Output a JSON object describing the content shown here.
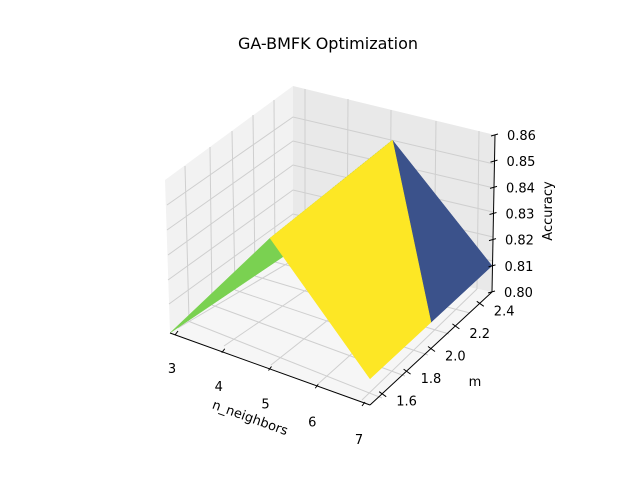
{
  "chart_data": {
    "type": "surface3d",
    "title": "GA-BMFK Optimization",
    "xlabel": "n_neighbors",
    "ylabel": "m",
    "zlabel": "Accuracy",
    "x_ticks": [
      "3",
      "4",
      "5",
      "6",
      "7"
    ],
    "y_ticks": [
      "1.6",
      "1.8",
      "2.0",
      "2.2",
      "2.4"
    ],
    "z_ticks": [
      "0.80",
      "0.81",
      "0.82",
      "0.83",
      "0.84",
      "0.85",
      "0.86"
    ],
    "grid": true,
    "colormap": "viridis",
    "x": [
      3,
      5,
      7
    ],
    "y": [
      1.5,
      2.0,
      2.5
    ],
    "z": [
      [
        0.8,
        0.85,
        0.81
      ],
      [
        0.8,
        0.85,
        0.81
      ],
      [
        0.8,
        0.85,
        0.81
      ]
    ],
    "face_colors": [
      "#7ad151",
      "#fde725",
      "#3b528b"
    ]
  }
}
